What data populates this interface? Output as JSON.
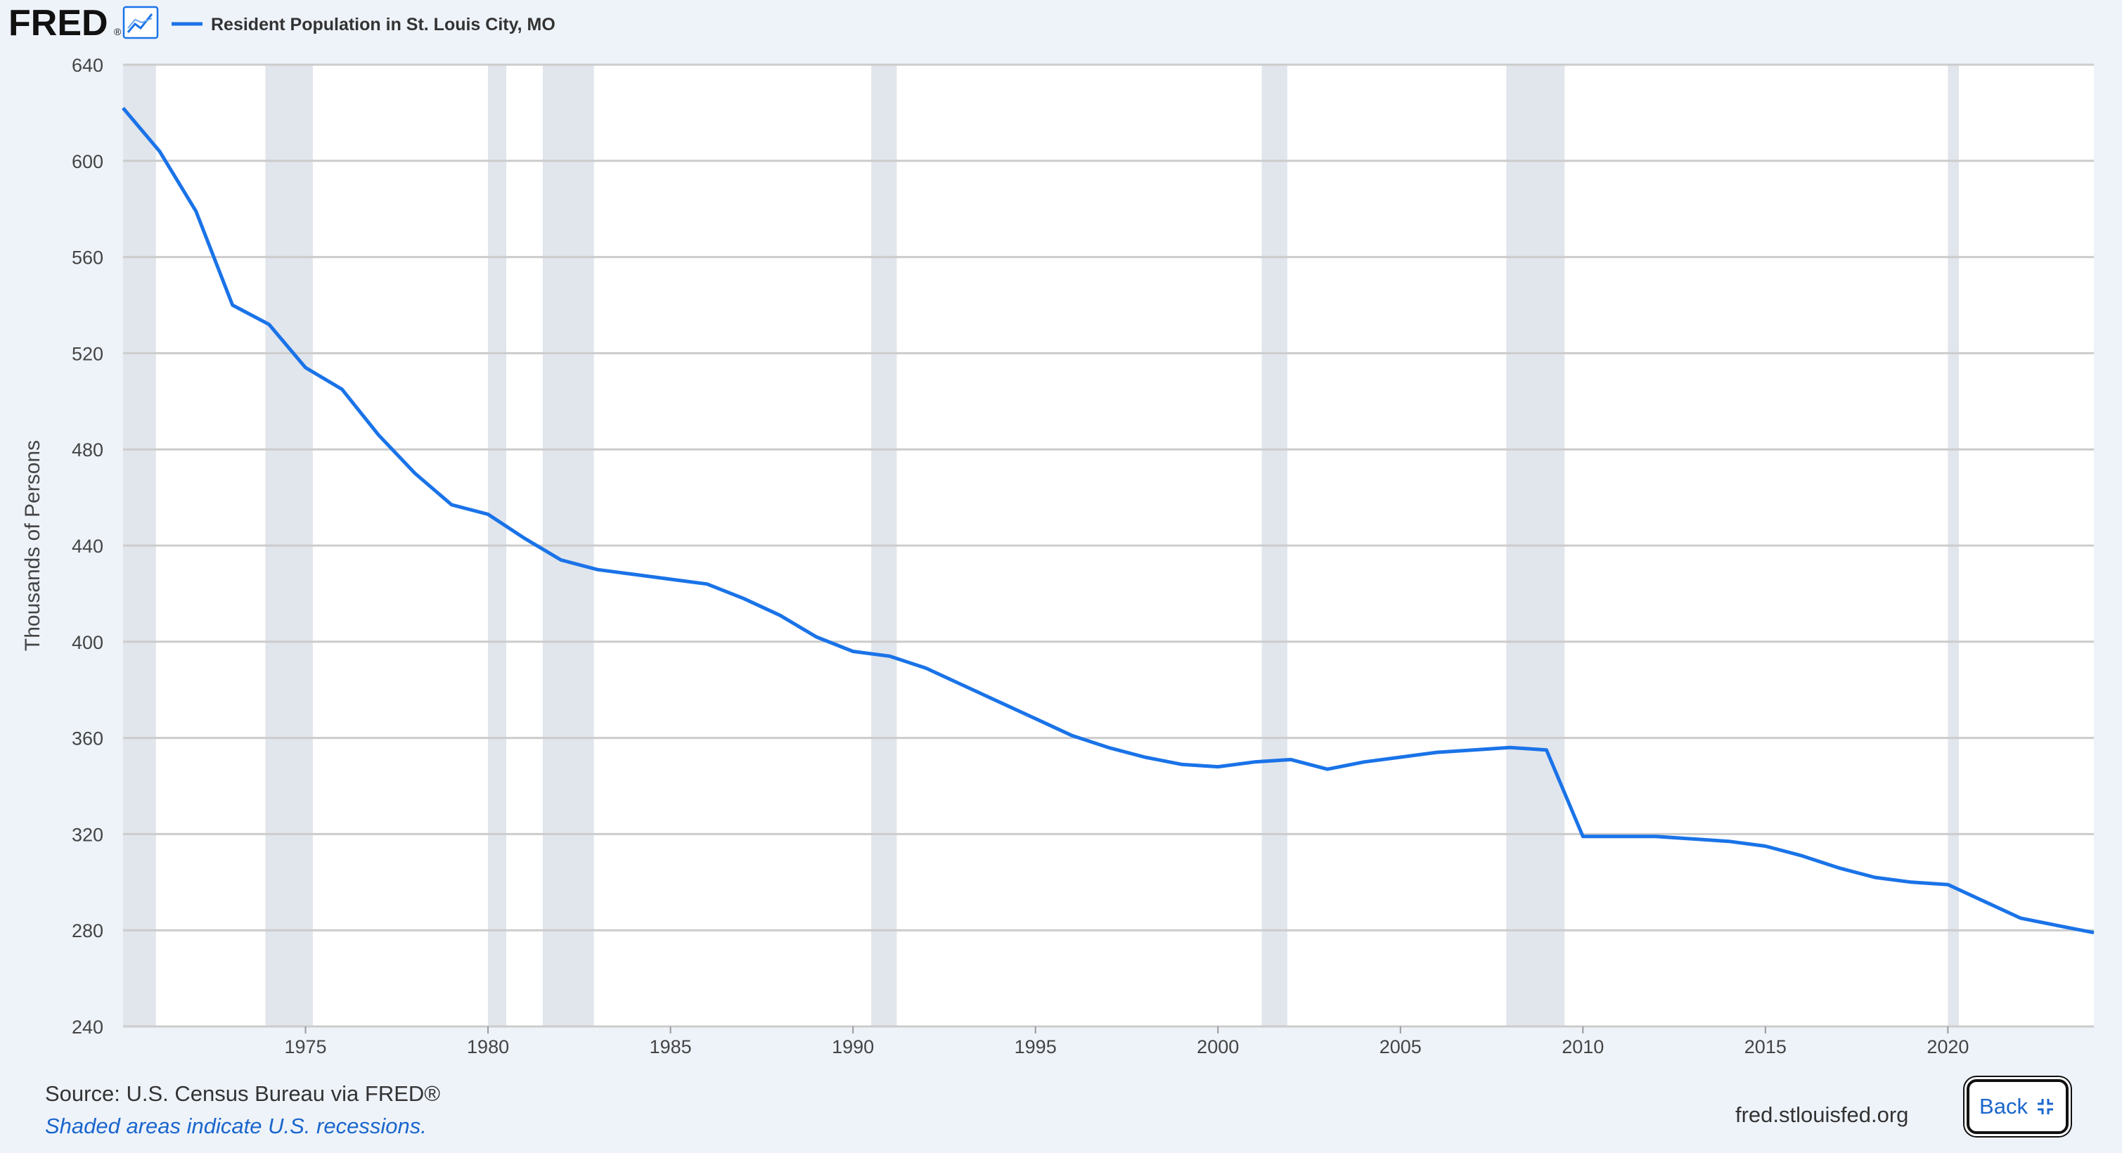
{
  "header": {
    "logo_text": "FRED",
    "logo_mark": "®",
    "logo_icon": "line-chart-icon"
  },
  "footer": {
    "source": "Source: U.S. Census Bureau via FRED®",
    "note": "Shaded areas indicate U.S. recessions.",
    "site": "fred.stlouisfed.org",
    "back_label": "Back",
    "back_icon": "collapse-arrows-icon"
  },
  "colors": {
    "series": "#1a73e8",
    "recession": "#e1e5ec",
    "background": "#eef3fa",
    "plot": "#ffffff",
    "grid": "#cccccc"
  },
  "chart_data": {
    "type": "line",
    "title": "",
    "xlabel": "",
    "ylabel": "Thousands of Persons",
    "xlim": [
      1970.0,
      2024.0
    ],
    "ylim": [
      240,
      640
    ],
    "yticks": [
      240,
      280,
      320,
      360,
      400,
      440,
      480,
      520,
      560,
      600,
      640
    ],
    "xticks": [
      1975,
      1980,
      1985,
      1990,
      1995,
      2000,
      2005,
      2010,
      2015,
      2020
    ],
    "grid": true,
    "legend_position": "top-left",
    "series": [
      {
        "name": "Resident Population in St. Louis City, MO",
        "x": [
          1970,
          1971,
          1972,
          1973,
          1974,
          1975,
          1976,
          1977,
          1978,
          1979,
          1980,
          1981,
          1982,
          1983,
          1984,
          1985,
          1986,
          1987,
          1988,
          1989,
          1990,
          1991,
          1992,
          1993,
          1994,
          1995,
          1996,
          1997,
          1998,
          1999,
          2000,
          2001,
          2002,
          2003,
          2004,
          2005,
          2006,
          2007,
          2008,
          2009,
          2010,
          2011,
          2012,
          2013,
          2014,
          2015,
          2016,
          2017,
          2018,
          2019,
          2020,
          2021,
          2022,
          2023,
          2024
        ],
        "values": [
          622,
          604,
          579,
          540,
          532,
          514,
          505,
          486,
          470,
          457,
          453,
          443,
          434,
          430,
          428,
          426,
          424,
          418,
          411,
          402,
          396,
          394,
          389,
          382,
          375,
          368,
          361,
          356,
          352,
          349,
          348,
          350,
          351,
          347,
          350,
          352,
          354,
          355,
          356,
          355,
          319,
          319,
          319,
          318,
          317,
          315,
          311,
          306,
          302,
          300,
          299,
          292,
          285,
          282,
          279
        ]
      }
    ],
    "recessions": [
      [
        1969.9,
        1970.9
      ],
      [
        1973.9,
        1975.2
      ],
      [
        1980.0,
        1980.5
      ],
      [
        1981.5,
        1982.9
      ],
      [
        1990.5,
        1991.2
      ],
      [
        2001.2,
        2001.9
      ],
      [
        2007.9,
        2009.5
      ],
      [
        2020.0,
        2020.3
      ]
    ]
  }
}
